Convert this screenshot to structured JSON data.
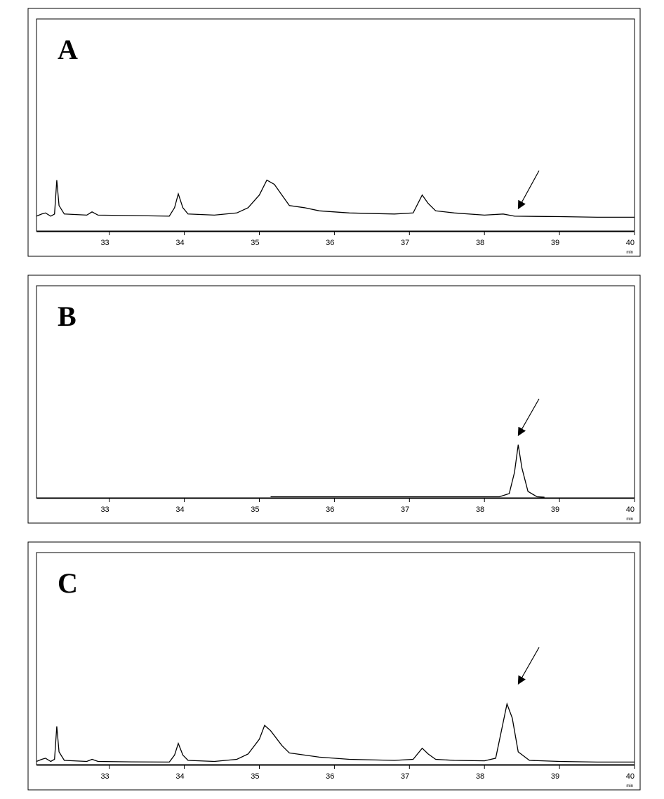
{
  "chart_data": [
    {
      "type": "line",
      "title": "A",
      "x_label": "min",
      "xlim": [
        32.03,
        40
      ],
      "xticks": [
        33,
        34,
        35,
        36,
        37,
        38,
        39,
        40
      ],
      "ylim": [
        0,
        100
      ],
      "series": [
        {
          "color": "#000000",
          "x": [
            32.03,
            32.1,
            32.15,
            32.22,
            32.27,
            32.3,
            32.33,
            32.4,
            32.7,
            32.77,
            32.85,
            33.3,
            33.8,
            33.87,
            33.92,
            33.98,
            34.05,
            34.4,
            34.7,
            34.85,
            35.0,
            35.1,
            35.2,
            35.3,
            35.4,
            35.6,
            35.8,
            36.2,
            36.8,
            37.05,
            37.17,
            37.25,
            37.35,
            37.6,
            38.0,
            38.25,
            38.4,
            39.0,
            39.5,
            40
          ],
          "values": [
            7,
            8,
            8.5,
            7,
            8,
            24,
            12,
            8,
            7.5,
            9,
            7.5,
            7.3,
            7,
            11,
            17.5,
            11,
            8,
            7.5,
            8.5,
            11,
            17,
            24,
            22,
            17,
            12,
            11,
            9.5,
            8.5,
            8,
            8.5,
            17,
            13,
            9.5,
            8.5,
            7.5,
            8,
            7,
            6.8,
            6.5,
            6.5
          ]
        }
      ]
    },
    {
      "type": "line",
      "title": "B",
      "x_label": "min",
      "xlim": [
        32.03,
        40
      ],
      "xticks": [
        33,
        34,
        35,
        36,
        37,
        38,
        39,
        40
      ],
      "ylim": [
        0,
        100
      ],
      "series": [
        {
          "color": "#000000",
          "x": [
            35.15,
            38.2,
            38.33,
            38.4,
            38.45,
            38.5,
            38.58,
            38.7,
            38.8
          ],
          "values": [
            0.5,
            0.5,
            2,
            12,
            25,
            14,
            3,
            0.5,
            0.3
          ]
        }
      ]
    },
    {
      "type": "line",
      "title": "C",
      "x_label": "min",
      "xlim": [
        32.03,
        40
      ],
      "xticks": [
        33,
        34,
        35,
        36,
        37,
        38,
        39,
        40
      ],
      "ylim": [
        0,
        100
      ],
      "series": [
        {
          "color": "#000000",
          "x": [
            32.03,
            32.1,
            32.15,
            32.22,
            32.27,
            32.3,
            32.33,
            32.4,
            32.7,
            32.77,
            32.85,
            33.3,
            33.8,
            33.87,
            33.92,
            33.98,
            34.05,
            34.4,
            34.7,
            34.85,
            35.0,
            35.07,
            35.15,
            35.3,
            35.4,
            35.6,
            35.8,
            36.2,
            36.8,
            37.05,
            37.17,
            37.25,
            37.35,
            37.6,
            38.0,
            38.15,
            38.25,
            38.3,
            38.37,
            38.45,
            38.6,
            39.0,
            39.5,
            40
          ],
          "values": [
            1.5,
            2.5,
            3,
            1.5,
            2.5,
            18,
            6,
            2,
            1.5,
            2.5,
            1.5,
            1.3,
            1.2,
            4.5,
            10,
            4.5,
            2,
            1.5,
            2.5,
            5,
            12,
            18.5,
            16,
            9,
            5.5,
            4.5,
            3.5,
            2.5,
            2,
            2.5,
            7.7,
            5,
            2.5,
            2,
            1.8,
            3,
            20,
            28.6,
            22,
            6,
            2,
            1.5,
            1.2,
            1.2
          ]
        }
      ]
    }
  ]
}
